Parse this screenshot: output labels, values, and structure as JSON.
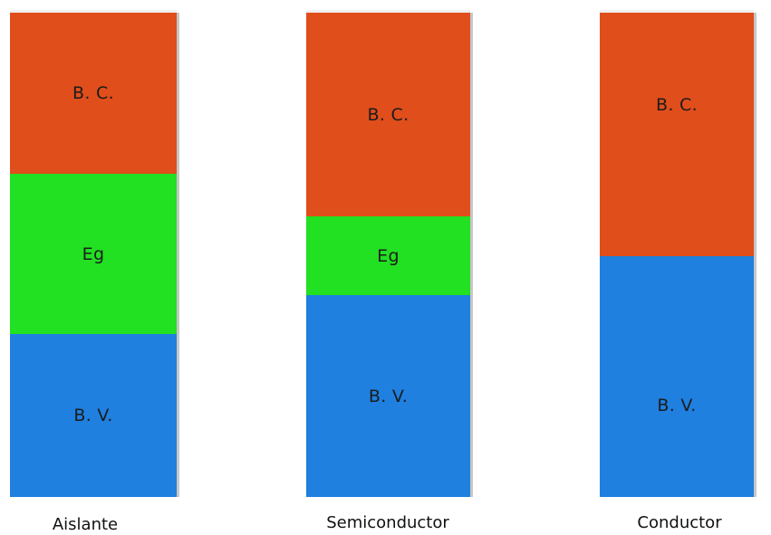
{
  "colors": {
    "conduction_band": "#e04e1c",
    "energy_gap": "#22e022",
    "valence_band": "#1f80e0"
  },
  "columns": [
    {
      "name": "Aislante",
      "bands": [
        {
          "type": "conduction",
          "label": "B. C."
        },
        {
          "type": "gap",
          "label": "Eg"
        },
        {
          "type": "valence",
          "label": "B. V."
        }
      ]
    },
    {
      "name": "Semiconductor",
      "bands": [
        {
          "type": "conduction",
          "label": "B. C."
        },
        {
          "type": "gap",
          "label": "Eg"
        },
        {
          "type": "valence",
          "label": "B. V."
        }
      ]
    },
    {
      "name": "Conductor",
      "bands": [
        {
          "type": "conduction",
          "label": "B. C."
        },
        {
          "type": "valence",
          "label": "B. V."
        }
      ]
    }
  ]
}
